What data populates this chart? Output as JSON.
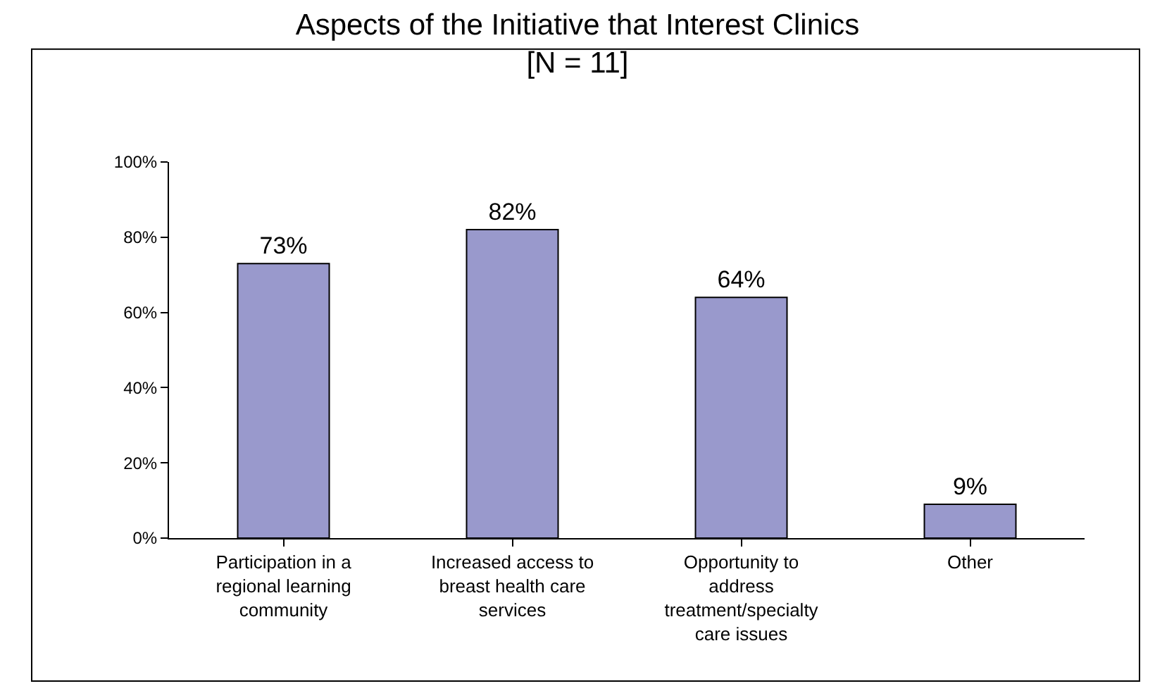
{
  "chart_data": {
    "type": "bar",
    "title": "Aspects of the Initiative that Interest Clinics\n[N = 11]",
    "categories": [
      "Participation in a regional learning community",
      "Increased access to breast health care services",
      "Opportunity to address treatment/specialty care issues",
      "Other"
    ],
    "values": [
      73,
      82,
      64,
      9
    ],
    "value_labels": [
      "73%",
      "82%",
      "64%",
      "9%"
    ],
    "color": "#9999cc",
    "ylim": [
      0,
      100
    ],
    "yticks": [
      {
        "value": 0,
        "label": "0%"
      },
      {
        "value": 20,
        "label": "20%"
      },
      {
        "value": 40,
        "label": "40%"
      },
      {
        "value": 60,
        "label": "60%"
      },
      {
        "value": 80,
        "label": "80%"
      },
      {
        "value": 100,
        "label": "100%"
      }
    ],
    "grid": false,
    "legend": false
  }
}
